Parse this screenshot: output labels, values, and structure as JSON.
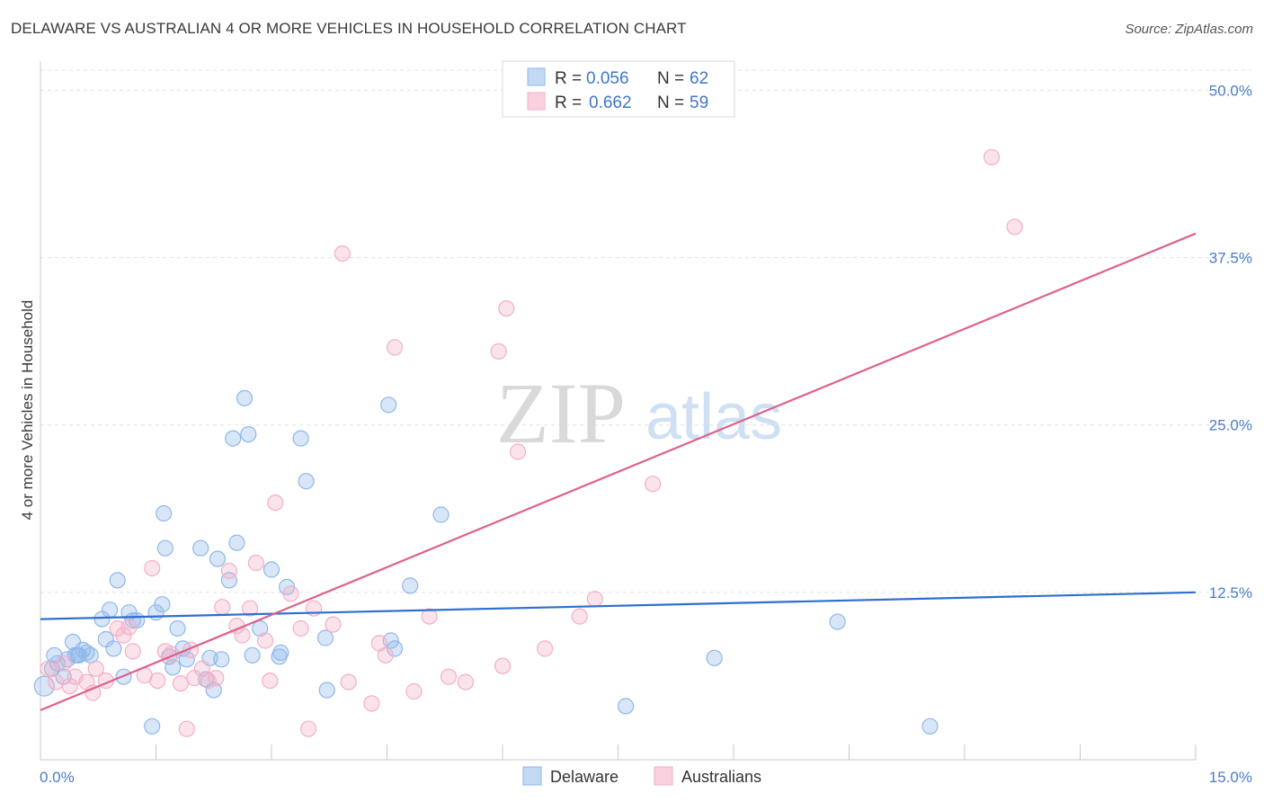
{
  "header": {
    "title": "DELAWARE VS AUSTRALIAN 4 OR MORE VEHICLES IN HOUSEHOLD CORRELATION CHART",
    "source": "Source: ZipAtlas.com"
  },
  "watermark": {
    "zip": "ZIP",
    "atlas": "atlas"
  },
  "legend_box": {
    "rows": [
      {
        "r_label": "R =",
        "r_value": "0.056",
        "n_label": "N =",
        "n_value": "62"
      },
      {
        "r_label": "R =",
        "r_value": "0.662",
        "n_label": "N =",
        "n_value": "59"
      }
    ]
  },
  "chart_data": {
    "type": "scatter",
    "title": "DELAWARE VS AUSTRALIAN 4 OR MORE VEHICLES IN HOUSEHOLD CORRELATION CHART",
    "xlabel": "",
    "ylabel": "4 or more Vehicles in Household",
    "xlim": [
      0,
      15
    ],
    "ylim": [
      0,
      51.5
    ],
    "x_tick_labels": [
      {
        "value": 0,
        "label": "0.0%"
      },
      {
        "value": 15,
        "label": "15.0%"
      }
    ],
    "y_tick_labels": [
      {
        "value": 12.5,
        "label": "12.5%"
      },
      {
        "value": 25,
        "label": "25.0%"
      },
      {
        "value": 37.5,
        "label": "37.5%"
      },
      {
        "value": 50,
        "label": "50.0%"
      }
    ],
    "x_minor_ticks": [
      0,
      1.5,
      3,
      4.5,
      6,
      7.5,
      9,
      10.5,
      12,
      13.5,
      15
    ],
    "grid": true,
    "legend_position": "bottom-center",
    "series": [
      {
        "name": "Delaware",
        "color": "#8fb8ea",
        "line_color": "#2f6fce",
        "trend": {
          "x0": 0,
          "y0": 10.5,
          "x1": 15,
          "y1": 12.5
        },
        "points": [
          [
            0.05,
            5.5
          ],
          [
            0.15,
            6.8
          ],
          [
            0.18,
            7.8
          ],
          [
            0.22,
            7.2
          ],
          [
            0.3,
            6.2
          ],
          [
            0.35,
            7.5
          ],
          [
            0.42,
            8.8
          ],
          [
            0.45,
            7.8
          ],
          [
            0.5,
            7.8
          ],
          [
            0.55,
            8.2
          ],
          [
            0.6,
            8.0
          ],
          [
            0.65,
            7.8
          ],
          [
            0.8,
            10.5
          ],
          [
            0.85,
            9.0
          ],
          [
            0.9,
            11.2
          ],
          [
            0.95,
            8.3
          ],
          [
            1.0,
            13.4
          ],
          [
            1.08,
            6.2
          ],
          [
            1.15,
            11.0
          ],
          [
            1.2,
            10.4
          ],
          [
            1.25,
            10.4
          ],
          [
            1.5,
            11.0
          ],
          [
            1.45,
            2.5
          ],
          [
            1.58,
            11.6
          ],
          [
            1.6,
            18.4
          ],
          [
            1.62,
            15.8
          ],
          [
            1.67,
            7.7
          ],
          [
            1.72,
            6.9
          ],
          [
            1.78,
            9.8
          ],
          [
            1.85,
            8.3
          ],
          [
            1.9,
            7.5
          ],
          [
            2.08,
            15.8
          ],
          [
            2.15,
            6.0
          ],
          [
            2.2,
            7.6
          ],
          [
            2.25,
            5.2
          ],
          [
            2.3,
            15.0
          ],
          [
            2.35,
            7.5
          ],
          [
            2.45,
            13.4
          ],
          [
            2.5,
            24.0
          ],
          [
            2.55,
            16.2
          ],
          [
            2.65,
            27.0
          ],
          [
            2.7,
            24.3
          ],
          [
            2.75,
            7.8
          ],
          [
            2.85,
            9.8
          ],
          [
            3.0,
            14.2
          ],
          [
            3.1,
            7.7
          ],
          [
            3.12,
            8.0
          ],
          [
            3.2,
            12.9
          ],
          [
            3.38,
            24.0
          ],
          [
            3.45,
            20.8
          ],
          [
            3.7,
            9.1
          ],
          [
            3.72,
            5.2
          ],
          [
            4.55,
            8.9
          ],
          [
            4.52,
            26.5
          ],
          [
            4.6,
            8.3
          ],
          [
            4.8,
            13.0
          ],
          [
            5.2,
            18.3
          ],
          [
            7.6,
            4.0
          ],
          [
            8.75,
            7.6
          ],
          [
            10.35,
            10.3
          ],
          [
            11.55,
            2.5
          ],
          [
            0.48,
            7.8
          ]
        ]
      },
      {
        "name": "Australians",
        "color": "#f4afc6",
        "line_color": "#e0608c",
        "trend": {
          "x0": 0,
          "y0": 3.7,
          "x1": 15,
          "y1": 39.3
        },
        "points": [
          [
            0.1,
            6.8
          ],
          [
            0.2,
            5.8
          ],
          [
            0.3,
            7.2
          ],
          [
            0.38,
            5.5
          ],
          [
            0.45,
            6.2
          ],
          [
            0.6,
            5.8
          ],
          [
            0.68,
            5.0
          ],
          [
            0.72,
            6.8
          ],
          [
            0.85,
            5.9
          ],
          [
            1.0,
            9.8
          ],
          [
            1.08,
            9.3
          ],
          [
            1.15,
            9.9
          ],
          [
            1.2,
            8.1
          ],
          [
            1.35,
            6.3
          ],
          [
            1.45,
            14.3
          ],
          [
            1.52,
            5.9
          ],
          [
            1.62,
            8.1
          ],
          [
            1.7,
            7.9
          ],
          [
            1.82,
            5.7
          ],
          [
            1.9,
            2.3
          ],
          [
            1.95,
            8.2
          ],
          [
            2.0,
            6.1
          ],
          [
            2.1,
            6.8
          ],
          [
            2.18,
            5.9
          ],
          [
            2.28,
            6.1
          ],
          [
            2.36,
            11.4
          ],
          [
            2.45,
            14.1
          ],
          [
            2.55,
            10.0
          ],
          [
            2.62,
            9.3
          ],
          [
            2.72,
            11.3
          ],
          [
            2.8,
            14.7
          ],
          [
            2.92,
            8.9
          ],
          [
            2.98,
            5.9
          ],
          [
            3.05,
            19.2
          ],
          [
            3.25,
            12.4
          ],
          [
            3.38,
            9.8
          ],
          [
            3.48,
            2.3
          ],
          [
            3.55,
            11.3
          ],
          [
            3.8,
            10.1
          ],
          [
            3.92,
            37.8
          ],
          [
            4.0,
            5.8
          ],
          [
            4.3,
            4.2
          ],
          [
            4.4,
            8.7
          ],
          [
            4.48,
            7.8
          ],
          [
            4.6,
            30.8
          ],
          [
            4.85,
            5.1
          ],
          [
            5.05,
            10.7
          ],
          [
            5.3,
            6.2
          ],
          [
            5.52,
            5.8
          ],
          [
            5.95,
            30.5
          ],
          [
            6.05,
            33.7
          ],
          [
            6.0,
            7.0
          ],
          [
            6.2,
            23.0
          ],
          [
            6.55,
            8.3
          ],
          [
            7.0,
            10.7
          ],
          [
            7.2,
            12.0
          ],
          [
            7.95,
            20.6
          ],
          [
            12.35,
            45.0
          ],
          [
            12.65,
            39.8
          ]
        ]
      }
    ]
  },
  "bottom_legend": {
    "items": [
      "Delaware",
      "Australians"
    ]
  }
}
